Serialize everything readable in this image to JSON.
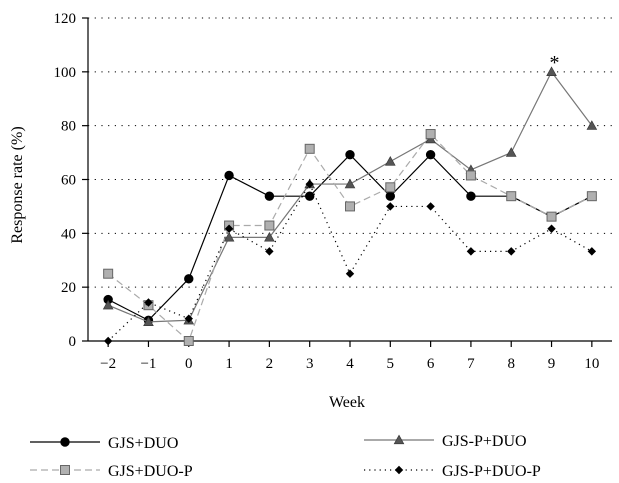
{
  "chart_data": {
    "type": "line",
    "xlabel": "Week",
    "ylabel": "Response rate (%)",
    "ylim": [
      0,
      120
    ],
    "yticks": [
      0,
      20,
      40,
      60,
      80,
      100,
      120
    ],
    "x": [
      -2,
      -1,
      0,
      1,
      2,
      3,
      4,
      5,
      6,
      7,
      8,
      9,
      10
    ],
    "xticks": [
      "−2",
      "−1",
      "0",
      "1",
      "2",
      "3",
      "4",
      "5",
      "6",
      "7",
      "8",
      "9",
      "10"
    ],
    "grid": "horizontal dotted",
    "legend_position": "bottom",
    "series": [
      {
        "name": "GJS+DUO",
        "color": "#000000",
        "line": "solid",
        "marker": "circle",
        "values": [
          15.4,
          7.7,
          23.1,
          61.5,
          53.8,
          53.8,
          69.2,
          53.8,
          69.2,
          53.8,
          53.8,
          46.2,
          53.8
        ]
      },
      {
        "name": "GJS-P+DUO",
        "color": "#777777",
        "line": "solid",
        "marker": "triangle",
        "values": [
          13.3,
          7.1,
          7.7,
          38.5,
          38.5,
          58.3,
          58.3,
          66.7,
          75.0,
          63.6,
          70.0,
          100,
          80.0
        ]
      },
      {
        "name": "GJS+DUO-P",
        "color": "#aaaaaa",
        "line": "dashed",
        "marker": "square",
        "values": [
          25.0,
          13.3,
          0,
          42.9,
          42.9,
          71.4,
          50.0,
          57.1,
          76.9,
          61.5,
          53.8,
          46.2,
          53.8
        ]
      },
      {
        "name": "GJS-P+DUO-P",
        "color": "#000000",
        "line": "dotted",
        "marker": "diamond",
        "values": [
          0,
          14.3,
          8.3,
          41.7,
          33.3,
          58.3,
          25.0,
          50.0,
          50.0,
          33.3,
          33.3,
          41.7,
          33.3
        ]
      }
    ],
    "annotations": [
      {
        "text": "*",
        "x": 9,
        "y": 100
      }
    ]
  }
}
